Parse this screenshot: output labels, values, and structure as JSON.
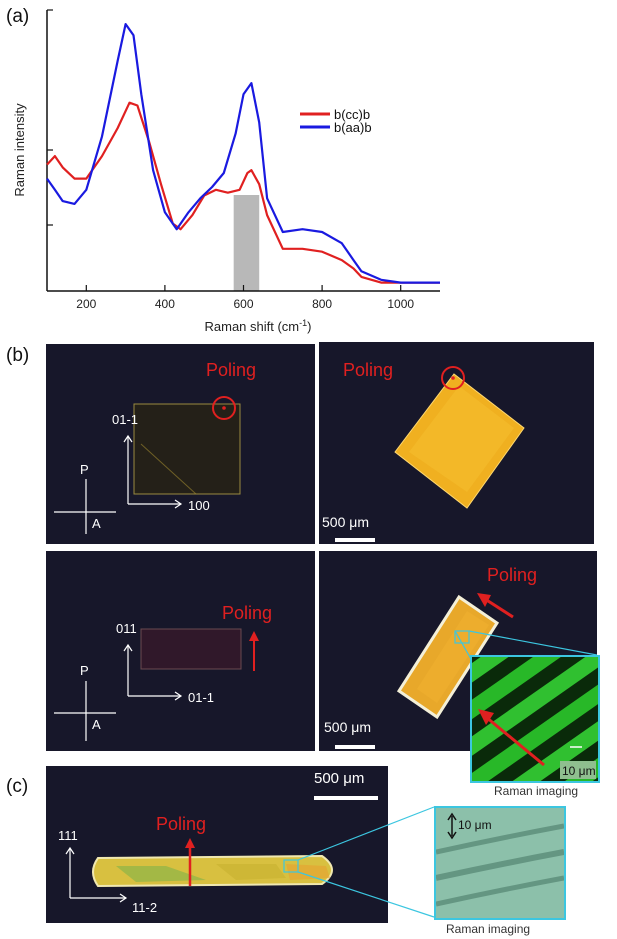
{
  "panels": {
    "a": "(a)",
    "b": "(b)",
    "c": "(c)"
  },
  "chart_data": {
    "type": "line",
    "xlabel": "Raman shift (cm",
    "xlabel_sup": "-1",
    "xlabel_tail": ")",
    "ylabel": "Raman intensity",
    "xlim": [
      100,
      1100
    ],
    "x_ticks": [
      200,
      400,
      600,
      800,
      1000
    ],
    "shaded_region": [
      575,
      640
    ],
    "legend_position": "top-right",
    "series": [
      {
        "name": "b(cc)b",
        "color": "#e02020",
        "x": [
          100,
          120,
          140,
          170,
          200,
          240,
          280,
          310,
          330,
          360,
          390,
          420,
          440,
          470,
          500,
          530,
          560,
          590,
          610,
          620,
          640,
          660,
          700,
          750,
          800,
          850,
          880,
          900,
          950,
          1000,
          1050,
          1100
        ],
        "y": [
          0.45,
          0.48,
          0.44,
          0.4,
          0.4,
          0.48,
          0.58,
          0.67,
          0.66,
          0.53,
          0.38,
          0.24,
          0.22,
          0.27,
          0.34,
          0.36,
          0.35,
          0.36,
          0.42,
          0.43,
          0.38,
          0.27,
          0.15,
          0.15,
          0.14,
          0.11,
          0.08,
          0.05,
          0.03,
          0.03,
          0.03,
          0.03
        ]
      },
      {
        "name": "b(aa)b",
        "color": "#1a1ae0",
        "x": [
          100,
          120,
          140,
          170,
          200,
          240,
          280,
          300,
          320,
          340,
          370,
          400,
          430,
          460,
          490,
          520,
          550,
          580,
          600,
          620,
          640,
          660,
          700,
          750,
          800,
          850,
          880,
          900,
          950,
          1000,
          1050,
          1100
        ],
        "y": [
          0.4,
          0.36,
          0.32,
          0.31,
          0.36,
          0.55,
          0.82,
          0.95,
          0.91,
          0.7,
          0.43,
          0.28,
          0.22,
          0.28,
          0.33,
          0.37,
          0.42,
          0.56,
          0.7,
          0.74,
          0.6,
          0.33,
          0.21,
          0.22,
          0.21,
          0.17,
          0.11,
          0.07,
          0.04,
          0.03,
          0.03,
          0.03
        ]
      }
    ]
  },
  "b": {
    "tl": {
      "poling": "Poling",
      "ax_up": "01-1",
      "ax_right": "100",
      "pol_p": "P",
      "pol_a": "A"
    },
    "tr": {
      "poling": "Poling",
      "scale": "500 μm"
    },
    "bl": {
      "poling": "Poling",
      "ax_up": "011",
      "ax_right": "01-1",
      "pol_p": "P",
      "pol_a": "A"
    },
    "br": {
      "poling": "Poling",
      "scale": "500 μm",
      "inset_scale": "10 μm",
      "caption": "Raman imaging"
    }
  },
  "c": {
    "scale": "500 μm",
    "poling": "Poling",
    "ax_up": "111",
    "ax_right": "11-2",
    "inset_scale": "10 μm",
    "caption": "Raman imaging"
  },
  "colors": {
    "poling": "#e02020",
    "inset_border": "#3cc6e0",
    "photo_bg": "#17172a"
  }
}
